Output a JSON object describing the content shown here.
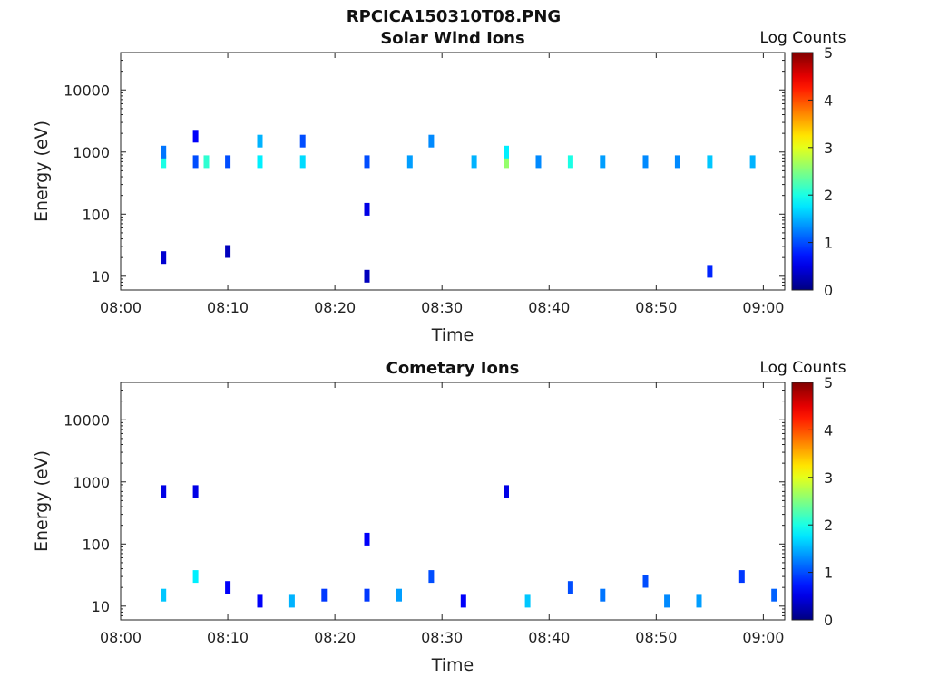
{
  "figure_title": "RPCICA150310T08.PNG",
  "colorbar": {
    "label": "Log Counts",
    "ticks": [
      "0",
      "1",
      "2",
      "3",
      "4",
      "5"
    ],
    "min": 0,
    "max": 5,
    "colormap": "jet"
  },
  "chart_data": [
    {
      "type": "heatmap",
      "title": "Solar Wind Ions",
      "xlabel": "Time",
      "ylabel": "Energy (eV)",
      "x_tick_labels": [
        "08:00",
        "08:10",
        "08:20",
        "08:30",
        "08:40",
        "08:50",
        "09:00"
      ],
      "xlim": [
        "08:00",
        "09:02"
      ],
      "y_tick_labels": [
        "10",
        "100",
        "1000",
        "10000"
      ],
      "ylim": [
        6,
        40000
      ],
      "yscale": "log",
      "colorbar_label": "Log Counts",
      "color_range": [
        0,
        5
      ],
      "cells": [
        {
          "t": "08:04",
          "e": 700,
          "v": 2.0
        },
        {
          "t": "08:04",
          "e": 1000,
          "v": 1.2
        },
        {
          "t": "08:04",
          "e": 20,
          "v": 0.4
        },
        {
          "t": "08:07",
          "e": 700,
          "v": 1.0
        },
        {
          "t": "08:07",
          "e": 1800,
          "v": 0.6
        },
        {
          "t": "08:08",
          "e": 700,
          "v": 2.1
        },
        {
          "t": "08:10",
          "e": 700,
          "v": 1.0
        },
        {
          "t": "08:10",
          "e": 25,
          "v": 0.3
        },
        {
          "t": "08:13",
          "e": 700,
          "v": 1.8
        },
        {
          "t": "08:13",
          "e": 1500,
          "v": 1.5
        },
        {
          "t": "08:17",
          "e": 700,
          "v": 1.7
        },
        {
          "t": "08:17",
          "e": 1500,
          "v": 1.0
        },
        {
          "t": "08:23",
          "e": 120,
          "v": 0.5
        },
        {
          "t": "08:23",
          "e": 700,
          "v": 1.0
        },
        {
          "t": "08:23",
          "e": 10,
          "v": 0.3
        },
        {
          "t": "08:27",
          "e": 700,
          "v": 1.4
        },
        {
          "t": "08:29",
          "e": 1500,
          "v": 1.3
        },
        {
          "t": "08:33",
          "e": 700,
          "v": 1.5
        },
        {
          "t": "08:36",
          "e": 700,
          "v": 2.6
        },
        {
          "t": "08:36",
          "e": 1000,
          "v": 1.8
        },
        {
          "t": "08:39",
          "e": 700,
          "v": 1.3
        },
        {
          "t": "08:42",
          "e": 700,
          "v": 2.0
        },
        {
          "t": "08:45",
          "e": 700,
          "v": 1.4
        },
        {
          "t": "08:49",
          "e": 700,
          "v": 1.3
        },
        {
          "t": "08:52",
          "e": 700,
          "v": 1.3
        },
        {
          "t": "08:55",
          "e": 700,
          "v": 1.6
        },
        {
          "t": "08:55",
          "e": 12,
          "v": 0.8
        },
        {
          "t": "08:59",
          "e": 700,
          "v": 1.5
        }
      ]
    },
    {
      "type": "heatmap",
      "title": "Cometary Ions",
      "xlabel": "Time",
      "ylabel": "Energy (eV)",
      "x_tick_labels": [
        "08:00",
        "08:10",
        "08:20",
        "08:30",
        "08:40",
        "08:50",
        "09:00"
      ],
      "xlim": [
        "08:00",
        "09:02"
      ],
      "y_tick_labels": [
        "10",
        "100",
        "1000",
        "10000"
      ],
      "ylim": [
        6,
        40000
      ],
      "yscale": "log",
      "colorbar_label": "Log Counts",
      "color_range": [
        0,
        5
      ],
      "cells": [
        {
          "t": "08:04",
          "e": 15,
          "v": 1.6
        },
        {
          "t": "08:04",
          "e": 700,
          "v": 0.5
        },
        {
          "t": "08:07",
          "e": 30,
          "v": 1.8
        },
        {
          "t": "08:07",
          "e": 700,
          "v": 0.5
        },
        {
          "t": "08:10",
          "e": 20,
          "v": 0.6
        },
        {
          "t": "08:13",
          "e": 12,
          "v": 0.6
        },
        {
          "t": "08:16",
          "e": 12,
          "v": 1.5
        },
        {
          "t": "08:19",
          "e": 15,
          "v": 0.9
        },
        {
          "t": "08:23",
          "e": 120,
          "v": 0.6
        },
        {
          "t": "08:23",
          "e": 15,
          "v": 0.9
        },
        {
          "t": "08:26",
          "e": 15,
          "v": 1.4
        },
        {
          "t": "08:29",
          "e": 30,
          "v": 1.0
        },
        {
          "t": "08:32",
          "e": 12,
          "v": 0.6
        },
        {
          "t": "08:36",
          "e": 700,
          "v": 0.5
        },
        {
          "t": "08:38",
          "e": 12,
          "v": 1.6
        },
        {
          "t": "08:42",
          "e": 20,
          "v": 1.0
        },
        {
          "t": "08:45",
          "e": 15,
          "v": 1.2
        },
        {
          "t": "08:49",
          "e": 25,
          "v": 1.0
        },
        {
          "t": "08:51",
          "e": 12,
          "v": 1.3
        },
        {
          "t": "08:54",
          "e": 12,
          "v": 1.4
        },
        {
          "t": "08:58",
          "e": 30,
          "v": 0.9
        },
        {
          "t": "09:01",
          "e": 15,
          "v": 1.1
        }
      ]
    }
  ]
}
